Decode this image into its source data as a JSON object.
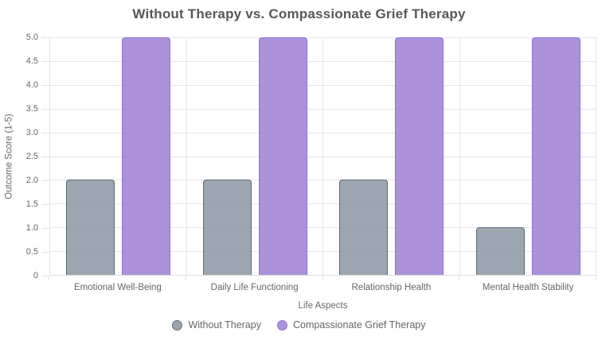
{
  "chart_data": {
    "type": "bar",
    "title": "Without Therapy vs. Compassionate Grief Therapy",
    "categories": [
      "Emotional Well-Being",
      "Daily Life Functioning",
      "Relationship Health",
      "Mental Health Stability"
    ],
    "series": [
      {
        "name": "Without Therapy",
        "values": [
          2,
          2,
          2,
          1
        ],
        "fill": "rgba(138,150,163,0.85)",
        "border": "#5E6C7A"
      },
      {
        "name": "Compassionate Grief Therapy",
        "values": [
          5,
          5,
          5,
          5
        ],
        "fill": "rgba(160,130,210,0.87)",
        "border": "#9370DB"
      }
    ],
    "xlabel": "Life Aspects",
    "ylabel": "Outcome Score (1-5)",
    "ylim": [
      0,
      5
    ],
    "ytick_step": 0.5,
    "ytick_labels": [
      "5.0",
      "4.5",
      "4.0",
      "3.5",
      "3.0",
      "2.5",
      "2.0",
      "1.5",
      "1.0",
      "0.5",
      "0"
    ],
    "grid": true,
    "legend_position": "bottom",
    "colors": {
      "title_text": "#575757",
      "axis_text": "#666666",
      "gridline": "#E6E6E6",
      "axis_line": "#DCDCDC"
    }
  }
}
